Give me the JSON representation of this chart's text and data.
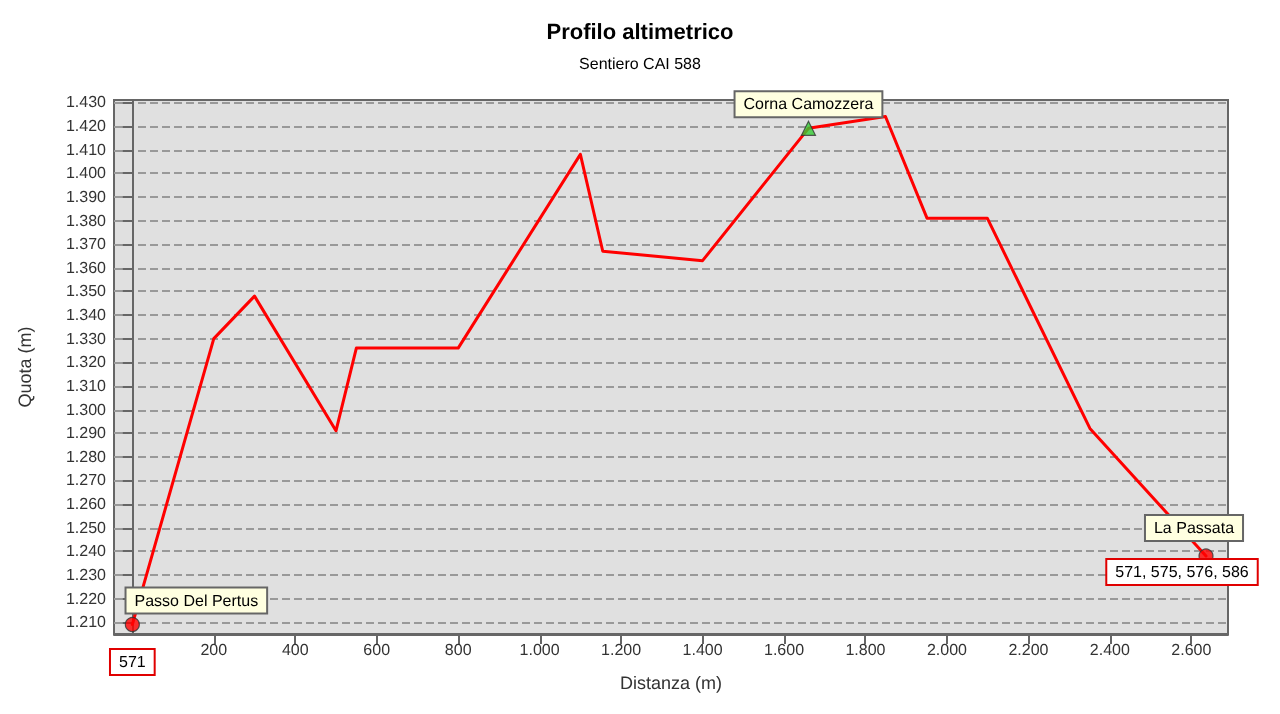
{
  "chart_data": {
    "type": "line",
    "title": "Profilo altimetrico",
    "subtitle": "Sentiero CAI 588",
    "xlabel": "Distanza (m)",
    "ylabel": "Quota (m)",
    "xlim": [
      -45,
      2690
    ],
    "xticks": [
      {
        "value": 200,
        "label": "200"
      },
      {
        "value": 400,
        "label": "400"
      },
      {
        "value": 600,
        "label": "600"
      },
      {
        "value": 800,
        "label": "800"
      },
      {
        "value": 1000,
        "label": "1.000"
      },
      {
        "value": 1200,
        "label": "1.200"
      },
      {
        "value": 1400,
        "label": "1.400"
      },
      {
        "value": 1600,
        "label": "1.600"
      },
      {
        "value": 1800,
        "label": "1.800"
      },
      {
        "value": 2000,
        "label": "2.000"
      },
      {
        "value": 2200,
        "label": "2.200"
      },
      {
        "value": 2400,
        "label": "2.400"
      },
      {
        "value": 2600,
        "label": "2.600"
      }
    ],
    "ylim": [
      1205,
      1431
    ],
    "yticks": [
      {
        "value": 1210,
        "label": "1.210"
      },
      {
        "value": 1220,
        "label": "1.220"
      },
      {
        "value": 1230,
        "label": "1.230"
      },
      {
        "value": 1240,
        "label": "1.240"
      },
      {
        "value": 1250,
        "label": "1.250"
      },
      {
        "value": 1260,
        "label": "1.260"
      },
      {
        "value": 1270,
        "label": "1.270"
      },
      {
        "value": 1280,
        "label": "1.280"
      },
      {
        "value": 1290,
        "label": "1.290"
      },
      {
        "value": 1300,
        "label": "1.300"
      },
      {
        "value": 1310,
        "label": "1.310"
      },
      {
        "value": 1320,
        "label": "1.320"
      },
      {
        "value": 1330,
        "label": "1.330"
      },
      {
        "value": 1340,
        "label": "1.340"
      },
      {
        "value": 1350,
        "label": "1.350"
      },
      {
        "value": 1360,
        "label": "1.360"
      },
      {
        "value": 1370,
        "label": "1.370"
      },
      {
        "value": 1380,
        "label": "1.380"
      },
      {
        "value": 1390,
        "label": "1.390"
      },
      {
        "value": 1400,
        "label": "1.400"
      },
      {
        "value": 1410,
        "label": "1.410"
      },
      {
        "value": 1420,
        "label": "1.420"
      },
      {
        "value": 1430,
        "label": "1.430"
      }
    ],
    "grid": "y",
    "series": [
      {
        "color": "#ff0000",
        "marker": "none",
        "x": [
          0,
          200,
          300,
          500,
          550,
          800,
          1100,
          1155,
          1400,
          1660,
          1849,
          1951,
          2099,
          2351,
          2636
        ],
        "values": [
          1209,
          1330,
          1348,
          1291,
          1326,
          1326,
          1408,
          1367,
          1363,
          1419,
          1424,
          1381,
          1381,
          1292,
          1238
        ]
      },
      {
        "type": "scatter",
        "color": "#ff0000",
        "marker": "circle",
        "x": [
          0,
          2636
        ],
        "values": [
          1209,
          1238
        ]
      },
      {
        "type": "scatter",
        "color": "#33cc33",
        "marker": "triangle",
        "x": [
          1660
        ],
        "values": [
          1419
        ]
      }
    ],
    "annotations": [
      {
        "text": "Passo Del Pertus",
        "x": 0,
        "y": 1209
      },
      {
        "text": "571",
        "x": 0,
        "y": 1205
      },
      {
        "text": "Corna Camozzera",
        "x": 1660,
        "y": 1419
      },
      {
        "text": "La Passata",
        "x": 2636,
        "y": 1238
      },
      {
        "text": "571, 575, 576, 586",
        "x": 2636,
        "y": 1238
      }
    ]
  }
}
